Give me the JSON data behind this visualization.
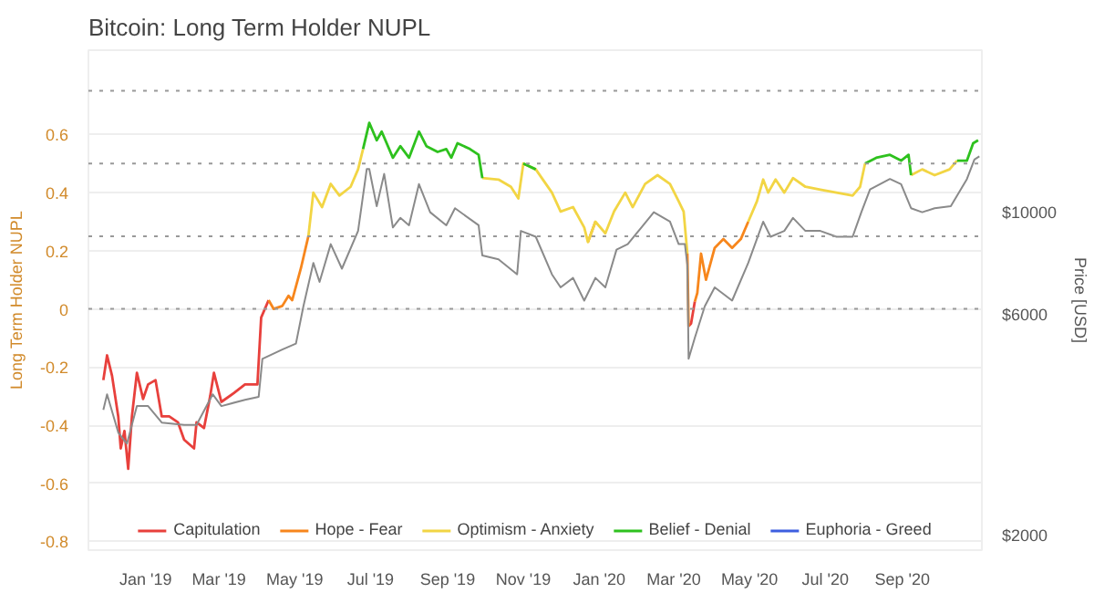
{
  "chart_data": {
    "type": "line",
    "title": "Bitcoin: Long Term Holder NUPL",
    "ylabel": "Long Term Holder NUPL",
    "y2label": "Price [USD]",
    "xlim": [
      "2018-11-16",
      "2020-11-04"
    ],
    "xticks": [
      {
        "value": "2019-01-01",
        "label": "Jan '19"
      },
      {
        "value": "2019-03-01",
        "label": "Mar '19"
      },
      {
        "value": "2019-05-01",
        "label": "May '19"
      },
      {
        "value": "2019-07-01",
        "label": "Jul '19"
      },
      {
        "value": "2019-09-01",
        "label": "Sep '19"
      },
      {
        "value": "2019-11-01",
        "label": "Nov '19"
      },
      {
        "value": "2020-01-01",
        "label": "Jan '20"
      },
      {
        "value": "2020-03-01",
        "label": "Mar '20"
      },
      {
        "value": "2020-05-01",
        "label": "May '20"
      },
      {
        "value": "2020-07-01",
        "label": "Jul '20"
      },
      {
        "value": "2020-09-01",
        "label": "Sep '20"
      }
    ],
    "ylim": [
      -0.83,
      0.89
    ],
    "yticks": [
      -0.8,
      -0.6,
      -0.4,
      -0.2,
      0,
      0.2,
      0.4,
      0.6
    ],
    "y2lim": [
      1860,
      22400
    ],
    "y2ticks": [
      {
        "value": 2000,
        "label": "$2000"
      },
      {
        "value": 6000,
        "label": "$6000"
      },
      {
        "value": 10000,
        "label": "$10000"
      }
    ],
    "log": "y2",
    "grid": "y",
    "legend": "bottom",
    "ref_lines": [
      {
        "axis": "y",
        "value": 0,
        "line_style": "dotted",
        "color": "#999999"
      },
      {
        "axis": "y",
        "value": 0.25,
        "line_style": "dotted",
        "color": "#999999"
      },
      {
        "axis": "y",
        "value": 0.5,
        "line_style": "dotted",
        "color": "#999999"
      },
      {
        "axis": "y",
        "value": 0.75,
        "line_style": "dotted",
        "color": "#999999"
      }
    ],
    "x": [
      "2018-11-28",
      "2018-12-01",
      "2018-12-05",
      "2018-12-10",
      "2018-12-12",
      "2018-12-15",
      "2018-12-18",
      "2018-12-21",
      "2018-12-25",
      "2018-12-30",
      "2019-01-03",
      "2019-01-09",
      "2019-01-14",
      "2019-01-20",
      "2019-01-27",
      "2019-02-01",
      "2019-02-09",
      "2019-02-11",
      "2019-02-17",
      "2019-02-22",
      "2019-02-25",
      "2019-03-03",
      "2019-03-13",
      "2019-03-22",
      "2019-04-01",
      "2019-04-04",
      "2019-04-10",
      "2019-04-14",
      "2019-04-21",
      "2019-04-26",
      "2019-04-29",
      "2019-05-06",
      "2019-05-12",
      "2019-05-16",
      "2019-05-23",
      "2019-05-30",
      "2019-06-06",
      "2019-06-15",
      "2019-06-21",
      "2019-06-25",
      "2019-06-30",
      "2019-07-06",
      "2019-07-10",
      "2019-07-19",
      "2019-07-25",
      "2019-08-01",
      "2019-08-09",
      "2019-08-15",
      "2019-08-24",
      "2019-08-31",
      "2019-09-04",
      "2019-09-09",
      "2019-09-19",
      "2019-09-26",
      "2019-09-29",
      "2019-10-12",
      "2019-10-22",
      "2019-10-28",
      "2019-11-01",
      "2019-11-11",
      "2019-11-24",
      "2019-12-01",
      "2019-12-11",
      "2019-12-20",
      "2019-12-23",
      "2019-12-29",
      "2020-01-06",
      "2020-01-13",
      "2020-01-22",
      "2020-01-28",
      "2020-02-07",
      "2020-02-17",
      "2020-02-27",
      "2020-03-05",
      "2020-03-09",
      "2020-03-12",
      "2020-03-13",
      "2020-03-15",
      "2020-03-18",
      "2020-03-20",
      "2020-03-23",
      "2020-03-27",
      "2020-04-03",
      "2020-04-10",
      "2020-04-17",
      "2020-04-24",
      "2020-04-30",
      "2020-05-07",
      "2020-05-12",
      "2020-05-16",
      "2020-05-22",
      "2020-05-29",
      "2020-06-05",
      "2020-06-15",
      "2020-06-27",
      "2020-07-10",
      "2020-07-23",
      "2020-07-29",
      "2020-08-02",
      "2020-08-11",
      "2020-08-22",
      "2020-08-31",
      "2020-09-06",
      "2020-09-08",
      "2020-09-17",
      "2020-09-27",
      "2020-10-09",
      "2020-10-15",
      "2020-10-23",
      "2020-10-28",
      "2020-11-01"
    ],
    "series": [
      {
        "name": "Capitulation",
        "color": "#e8403c",
        "axis": "y",
        "values": [
          -0.245,
          -0.16,
          -0.23,
          -0.37,
          -0.48,
          -0.42,
          -0.55,
          -0.37,
          -0.22,
          -0.31,
          -0.26,
          -0.245,
          -0.37,
          -0.37,
          -0.39,
          -0.45,
          -0.48,
          -0.39,
          -0.41,
          -0.3,
          -0.22,
          -0.32,
          -0.29,
          -0.26,
          -0.26,
          -0.03,
          0.03,
          null,
          null,
          null,
          null,
          null,
          null,
          null,
          null,
          null,
          null,
          null,
          null,
          null,
          null,
          null,
          null,
          null,
          null,
          null,
          null,
          null,
          null,
          null,
          null,
          null,
          null,
          null,
          null,
          null,
          null,
          null,
          null,
          null,
          null,
          null,
          null,
          null,
          null,
          null,
          null,
          null,
          null,
          null,
          null,
          null,
          null,
          null,
          null,
          null,
          -0.06,
          -0.05,
          0.025,
          null,
          null,
          null,
          null,
          null,
          null,
          null,
          null,
          null,
          null,
          null,
          null,
          null,
          null,
          null,
          null,
          null,
          null,
          null,
          null,
          null,
          null,
          null,
          null,
          null,
          null,
          null,
          null,
          null,
          null,
          null,
          null
        ]
      },
      {
        "name": "Hope - Fear",
        "color": "#f7861c",
        "axis": "y",
        "values": [
          null,
          null,
          null,
          null,
          null,
          null,
          null,
          null,
          null,
          null,
          null,
          null,
          null,
          null,
          null,
          null,
          null,
          null,
          null,
          null,
          null,
          null,
          null,
          null,
          null,
          null,
          0.03,
          0.0,
          0.01,
          0.045,
          0.03,
          0.14,
          0.25,
          null,
          null,
          null,
          null,
          null,
          null,
          null,
          null,
          null,
          null,
          null,
          null,
          null,
          null,
          null,
          null,
          null,
          null,
          null,
          null,
          null,
          null,
          null,
          null,
          null,
          null,
          null,
          null,
          null,
          null,
          null,
          0.23,
          0.3,
          null,
          null,
          null,
          null,
          null,
          null,
          null,
          null,
          null,
          0.19,
          -0.06,
          null,
          0.025,
          0.055,
          0.19,
          0.1,
          0.21,
          0.24,
          0.21,
          0.24,
          0.3,
          null,
          null,
          null,
          null,
          null,
          null,
          null,
          null,
          null,
          null,
          null,
          null,
          null,
          null,
          null,
          null,
          null,
          null,
          null,
          null,
          null,
          null,
          null,
          null
        ]
      },
      {
        "name": "Optimism - Anxiety",
        "color": "#f2d544",
        "axis": "y",
        "values": [
          null,
          null,
          null,
          null,
          null,
          null,
          null,
          null,
          null,
          null,
          null,
          null,
          null,
          null,
          null,
          null,
          null,
          null,
          null,
          null,
          null,
          null,
          null,
          null,
          null,
          null,
          null,
          null,
          null,
          null,
          null,
          null,
          0.25,
          0.4,
          0.35,
          0.43,
          0.39,
          0.42,
          0.48,
          0.55,
          null,
          null,
          null,
          null,
          null,
          null,
          null,
          null,
          null,
          null,
          null,
          null,
          null,
          null,
          0.45,
          0.445,
          0.42,
          0.38,
          0.5,
          0.48,
          0.4,
          0.335,
          0.35,
          0.28,
          0.23,
          0.3,
          0.26,
          0.335,
          0.4,
          0.35,
          0.43,
          0.46,
          0.43,
          0.37,
          0.335,
          0.19,
          null,
          null,
          null,
          null,
          null,
          null,
          null,
          null,
          null,
          null,
          0.3,
          0.37,
          0.445,
          0.4,
          0.445,
          0.4,
          0.45,
          0.42,
          0.41,
          0.4,
          0.39,
          0.42,
          0.5,
          null,
          null,
          null,
          null,
          0.46,
          0.48,
          0.46,
          0.48,
          0.51,
          null,
          null,
          null
        ]
      },
      {
        "name": "Belief - Denial",
        "color": "#2ec11e",
        "axis": "y",
        "values": [
          null,
          null,
          null,
          null,
          null,
          null,
          null,
          null,
          null,
          null,
          null,
          null,
          null,
          null,
          null,
          null,
          null,
          null,
          null,
          null,
          null,
          null,
          null,
          null,
          null,
          null,
          null,
          null,
          null,
          null,
          null,
          null,
          null,
          null,
          null,
          null,
          null,
          null,
          null,
          0.55,
          0.64,
          0.58,
          0.61,
          0.52,
          0.56,
          0.52,
          0.61,
          0.56,
          0.54,
          0.55,
          0.52,
          0.57,
          0.55,
          0.53,
          0.45,
          null,
          null,
          null,
          0.5,
          0.48,
          null,
          null,
          null,
          null,
          null,
          null,
          null,
          null,
          null,
          null,
          null,
          null,
          null,
          null,
          null,
          null,
          null,
          null,
          null,
          null,
          null,
          null,
          null,
          null,
          null,
          null,
          null,
          null,
          null,
          null,
          null,
          null,
          null,
          null,
          null,
          null,
          null,
          null,
          0.5,
          0.52,
          0.53,
          0.51,
          0.53,
          0.46,
          null,
          null,
          null,
          0.51,
          0.51,
          0.57,
          0.58
        ]
      },
      {
        "name": "Euphoria - Greed",
        "color": "#3d5ee0",
        "axis": "y",
        "values": [
          null,
          null,
          null,
          null,
          null,
          null,
          null,
          null,
          null,
          null,
          null,
          null,
          null,
          null,
          null,
          null,
          null,
          null,
          null,
          null,
          null,
          null,
          null,
          null,
          null,
          null,
          null,
          null,
          null,
          null,
          null,
          null,
          null,
          null,
          null,
          null,
          null,
          null,
          null,
          null,
          null,
          null,
          null,
          null,
          null,
          null,
          null,
          null,
          null,
          null,
          null,
          null,
          null,
          null,
          null,
          null,
          null,
          null,
          null,
          null,
          null,
          null,
          null,
          null,
          null,
          null,
          null,
          null,
          null,
          null,
          null,
          null,
          null,
          null,
          null,
          null,
          null,
          null,
          null,
          null,
          null,
          null,
          null,
          null,
          null,
          null,
          null,
          null,
          null,
          null,
          null,
          null,
          null,
          null,
          null,
          null,
          null,
          null,
          null,
          null,
          null,
          null,
          null,
          null,
          null,
          null,
          null,
          null,
          null,
          null,
          null
        ]
      },
      {
        "color": "#8a8a8a",
        "axis": "y2",
        "x": [
          "2018-11-28",
          "2018-12-01",
          "2018-12-10",
          "2018-12-17",
          "2018-12-25",
          "2019-01-03",
          "2019-01-14",
          "2019-02-01",
          "2019-02-11",
          "2019-02-24",
          "2019-03-03",
          "2019-03-22",
          "2019-04-02",
          "2019-04-05",
          "2019-04-21",
          "2019-05-02",
          "2019-05-08",
          "2019-05-16",
          "2019-05-21",
          "2019-05-30",
          "2019-06-08",
          "2019-06-21",
          "2019-06-28",
          "2019-06-30",
          "2019-07-06",
          "2019-07-12",
          "2019-07-19",
          "2019-07-25",
          "2019-08-01",
          "2019-08-09",
          "2019-08-18",
          "2019-08-31",
          "2019-09-07",
          "2019-09-26",
          "2019-09-29",
          "2019-10-12",
          "2019-10-27",
          "2019-10-30",
          "2019-11-11",
          "2019-11-24",
          "2019-12-01",
          "2019-12-11",
          "2019-12-20",
          "2019-12-29",
          "2020-01-06",
          "2020-01-15",
          "2020-01-24",
          "2020-02-04",
          "2020-02-14",
          "2020-02-27",
          "2020-03-05",
          "2020-03-10",
          "2020-03-12",
          "2020-03-13",
          "2020-03-18",
          "2020-03-26",
          "2020-04-03",
          "2020-04-17",
          "2020-04-30",
          "2020-05-12",
          "2020-05-18",
          "2020-05-29",
          "2020-06-05",
          "2020-06-15",
          "2020-06-27",
          "2020-07-10",
          "2020-07-23",
          "2020-07-30",
          "2020-08-06",
          "2020-08-22",
          "2020-08-31",
          "2020-09-08",
          "2020-09-17",
          "2020-09-27",
          "2020-10-10",
          "2020-10-23",
          "2020-10-29",
          "2020-11-02"
        ],
        "values": [
          3740,
          4040,
          3340,
          3160,
          3810,
          3810,
          3510,
          3470,
          3470,
          4040,
          3810,
          3930,
          3990,
          4820,
          5050,
          5200,
          6260,
          7770,
          7070,
          8530,
          7550,
          9110,
          12400,
          12400,
          10300,
          12100,
          9270,
          9720,
          9370,
          11500,
          10000,
          9370,
          10200,
          9370,
          8060,
          7910,
          7340,
          9110,
          8850,
          7340,
          6880,
          7210,
          6440,
          7210,
          6880,
          8300,
          8530,
          9270,
          10000,
          9540,
          8530,
          8530,
          7690,
          4820,
          5350,
          6260,
          6880,
          6440,
          7770,
          9540,
          8850,
          9110,
          9720,
          9110,
          9110,
          8850,
          8850,
          10000,
          11200,
          11800,
          11500,
          10200,
          10000,
          10200,
          10300,
          11800,
          13000,
          13200
        ]
      }
    ]
  }
}
